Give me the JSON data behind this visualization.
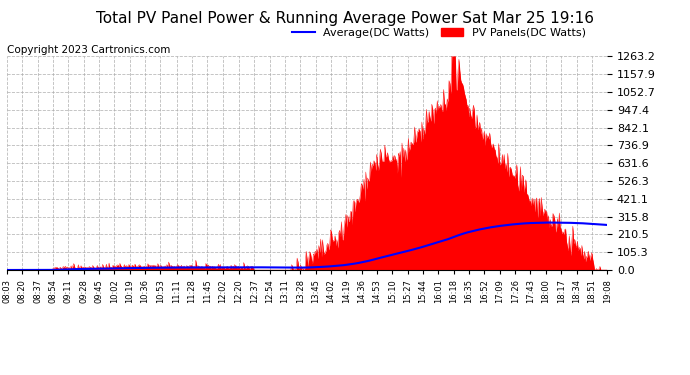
{
  "title": "Total PV Panel Power & Running Average Power Sat Mar 25 19:16",
  "copyright": "Copyright 2023 Cartronics.com",
  "legend_avg": "Average(DC Watts)",
  "legend_pv": "PV Panels(DC Watts)",
  "yticks": [
    0.0,
    105.3,
    210.5,
    315.8,
    421.1,
    526.3,
    631.6,
    736.9,
    842.1,
    947.4,
    1052.7,
    1157.9,
    1263.2
  ],
  "xtick_labels": [
    "08:03",
    "08:20",
    "08:37",
    "08:54",
    "09:11",
    "09:28",
    "09:45",
    "10:02",
    "10:19",
    "10:36",
    "10:53",
    "11:11",
    "11:28",
    "11:45",
    "12:02",
    "12:20",
    "12:37",
    "12:54",
    "13:11",
    "13:28",
    "13:45",
    "14:02",
    "14:19",
    "14:36",
    "14:53",
    "15:10",
    "15:27",
    "15:44",
    "16:01",
    "16:18",
    "16:35",
    "16:52",
    "17:09",
    "17:26",
    "17:43",
    "18:00",
    "18:17",
    "18:34",
    "18:51",
    "19:08"
  ],
  "bg_color": "#ffffff",
  "plot_bg_color": "#ffffff",
  "grid_color": "#aaaaaa",
  "pv_color": "#ff0000",
  "avg_color": "#0000ff",
  "title_color": "#000000",
  "title_fontsize": 11,
  "copyright_color": "#000000",
  "copyright_fontsize": 7.5,
  "legend_fontsize": 8,
  "ytick_fontsize": 8,
  "xtick_fontsize": 6
}
